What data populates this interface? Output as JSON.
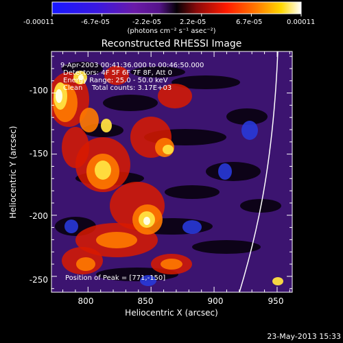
{
  "colorbar": {
    "tick_labels": [
      "-0.00011",
      "-6.7e-05",
      "-2.2e-05",
      "2.2e-05",
      "6.7e-05",
      "0.00011"
    ],
    "unit_label": "(photons cm⁻² s⁻¹ asec⁻²)"
  },
  "chart_data": {
    "type": "heatmap",
    "title": "Reconstructed RHESSI Image",
    "xlabel": "Heliocentric X (arcsec)",
    "ylabel": "Heliocentric Y (arcsec)",
    "xlim": [
      771,
      962
    ],
    "ylim": [
      -263,
      -66
    ],
    "x_ticks": [
      800,
      850,
      900,
      950
    ],
    "y_ticks": [
      -100,
      -150,
      -200,
      -250
    ],
    "colorscale_range": [
      -0.00011,
      0.00011
    ],
    "peak_position": [
      771,
      -150
    ]
  },
  "annotations": {
    "time_range": "9-Apr-2003 00:41:36.000 to 00:46:50.000",
    "detectors": "Detectors: 4F 5F 6F 7F 8F, Att 0",
    "energy_range": "Energy Range: 25.0 - 50.0 keV",
    "method": "Clean",
    "total_counts": "Total counts: 3.17E+03",
    "peak": "Position of Peak = [771,-150]"
  },
  "timestamp": "23-May-2013 15:33",
  "colors": {
    "background": "#000000",
    "text": "#ffffff",
    "limb": "#ffffff"
  }
}
